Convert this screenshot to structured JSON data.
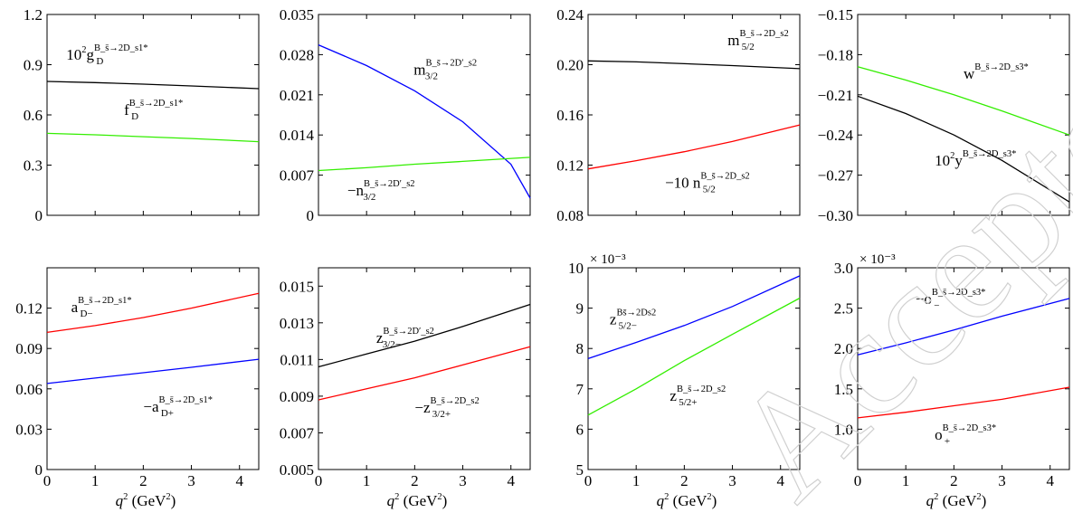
{
  "colors": {
    "black": "#000000",
    "red": "#ff0000",
    "blue": "#0000ff",
    "green": "#33ee00",
    "watermark": "#d9d9d9"
  },
  "watermark_text": "Accepted",
  "chart_data": [
    {
      "type": "line",
      "xlim": [
        0,
        4.4
      ],
      "ylim": [
        0,
        1.2
      ],
      "xticks": [],
      "yticks": [
        "0",
        "0.3",
        "0.6",
        "0.9",
        "1.2"
      ],
      "ytick_values": [
        0,
        0.3,
        0.6,
        0.9,
        1.2
      ],
      "multiplier": "",
      "xlabel": "",
      "series": [
        {
          "color": "black",
          "x": [
            0,
            1,
            2,
            3,
            4.4
          ],
          "y": [
            0.8,
            0.793,
            0.784,
            0.773,
            0.757
          ]
        },
        {
          "color": "green",
          "x": [
            0,
            1,
            2,
            3,
            4.4
          ],
          "y": [
            0.49,
            0.481,
            0.47,
            0.459,
            0.44
          ]
        }
      ],
      "annotations": [
        {
          "pre": "10",
          "pre_sup": "2",
          "base": "g",
          "sup": "B_s̄→2D_s1*",
          "sub": "D",
          "anchor_x": 0.4,
          "anchor_y": 0.93
        },
        {
          "pre": "",
          "pre_sup": "",
          "base": "f",
          "sup": "B_s̄→2D_s1*",
          "sub": "D",
          "anchor_x": 1.6,
          "anchor_y": 0.6
        }
      ]
    },
    {
      "type": "line",
      "xlim": [
        0,
        4.4
      ],
      "ylim": [
        0,
        0.035
      ],
      "xticks": [],
      "yticks": [
        "0",
        "0.007",
        "0.014",
        "0.021",
        "0.028",
        "0.035"
      ],
      "ytick_values": [
        0,
        0.007,
        0.014,
        0.021,
        0.028,
        0.035
      ],
      "multiplier": "",
      "xlabel": "",
      "series": [
        {
          "color": "blue",
          "x": [
            0,
            1,
            2,
            3,
            4,
            4.4
          ],
          "y": [
            0.0297,
            0.0261,
            0.0217,
            0.0163,
            0.0089,
            0.003
          ]
        },
        {
          "color": "green",
          "x": [
            0,
            1,
            2,
            3,
            4.4
          ],
          "y": [
            0.0078,
            0.0083,
            0.0089,
            0.0094,
            0.0101
          ]
        }
      ],
      "annotations": [
        {
          "pre": "",
          "pre_sup": "",
          "base": "m",
          "sup": "B_s̄→2D′_s2",
          "sub": "3/2",
          "anchor_x": 1.98,
          "anchor_y": 0.0245
        },
        {
          "pre": "−",
          "pre_sup": "",
          "base": "n",
          "sup": "B_s̄→2D′_s2",
          "sub": "3/2",
          "anchor_x": 0.6,
          "anchor_y": 0.0035
        }
      ]
    },
    {
      "type": "line",
      "xlim": [
        0,
        4.4
      ],
      "ylim": [
        0.08,
        0.24
      ],
      "xticks": [],
      "yticks": [
        "0.08",
        "0.12",
        "0.16",
        "0.20",
        "0.24"
      ],
      "ytick_values": [
        0.08,
        0.12,
        0.16,
        0.2,
        0.24
      ],
      "multiplier": "",
      "xlabel": "",
      "series": [
        {
          "color": "black",
          "x": [
            0,
            1,
            2,
            3,
            4.4
          ],
          "y": [
            0.203,
            0.2022,
            0.2008,
            0.1993,
            0.1968
          ]
        },
        {
          "color": "red",
          "x": [
            0,
            1,
            2,
            3,
            4.4
          ],
          "y": [
            0.117,
            0.1235,
            0.1307,
            0.1388,
            0.152
          ]
        }
      ],
      "annotations": [
        {
          "pre": "",
          "pre_sup": "",
          "base": "m",
          "sup": "B_s̄→2D_s2",
          "sub": "5/2",
          "anchor_x": 2.9,
          "anchor_y": 0.2155
        },
        {
          "pre": "−10 ",
          "pre_sup": "",
          "base": "n",
          "sup": "B_s̄→2D_s2",
          "sub": "5/2",
          "anchor_x": 1.6,
          "anchor_y": 0.102
        }
      ]
    },
    {
      "type": "line",
      "xlim": [
        0,
        4.4
      ],
      "ylim": [
        -0.3,
        -0.15
      ],
      "xticks": [],
      "yticks": [
        "−0.30",
        "−0.27",
        "−0.24",
        "−0.21",
        "−0.18",
        "−0.15"
      ],
      "ytick_values": [
        -0.3,
        -0.27,
        -0.24,
        -0.21,
        -0.18,
        -0.15
      ],
      "multiplier": "",
      "xlabel": "",
      "series": [
        {
          "color": "green",
          "x": [
            0,
            1,
            2,
            3,
            4.4
          ],
          "y": [
            -0.189,
            -0.199,
            -0.21,
            -0.222,
            -0.24
          ]
        },
        {
          "color": "black",
          "x": [
            0,
            1,
            2,
            3,
            4.4
          ],
          "y": [
            -0.211,
            -0.224,
            -0.24,
            -0.259,
            -0.29
          ]
        }
      ],
      "annotations": [
        {
          "pre": "",
          "pre_sup": "",
          "base": "w",
          "sup": "B_s̄→2D_s3*",
          "sub": "",
          "anchor_x": 2.2,
          "anchor_y": -0.198
        },
        {
          "pre": "10",
          "pre_sup": "2",
          "base": "y",
          "sup": "B_s̄→2D_s3*",
          "sub": "",
          "anchor_x": 1.6,
          "anchor_y": -0.263
        }
      ]
    },
    {
      "type": "line",
      "xlim": [
        0,
        4.4
      ],
      "ylim": [
        0,
        0.15
      ],
      "xticks": [
        "0",
        "1",
        "2",
        "3",
        "4"
      ],
      "xtick_values": [
        0,
        1,
        2,
        3,
        4
      ],
      "yticks": [
        "0",
        "0.03",
        "0.06",
        "0.09",
        "0.12"
      ],
      "ytick_values": [
        0,
        0.03,
        0.06,
        0.09,
        0.12
      ],
      "multiplier": "",
      "xlabel": "q² (GeV²)",
      "series": [
        {
          "color": "red",
          "x": [
            0,
            1,
            2,
            3,
            4.4
          ],
          "y": [
            0.102,
            0.107,
            0.113,
            0.12,
            0.131
          ]
        },
        {
          "color": "blue",
          "x": [
            0,
            1,
            2,
            3,
            4.4
          ],
          "y": [
            0.064,
            0.068,
            0.072,
            0.076,
            0.082
          ]
        }
      ],
      "annotations": [
        {
          "pre": "",
          "pre_sup": "",
          "base": "a",
          "sup": "B_s̄→2D_s1*",
          "sub": "D−",
          "anchor_x": 0.5,
          "anchor_y": 0.117
        },
        {
          "pre": "−",
          "pre_sup": "",
          "base": "a",
          "sup": "B_s̄→2D_s1*",
          "sub": "D+",
          "anchor_x": 2.0,
          "anchor_y": 0.043
        }
      ]
    },
    {
      "type": "line",
      "xlim": [
        0,
        4.4
      ],
      "ylim": [
        0.005,
        0.016
      ],
      "xticks": [
        "0",
        "1",
        "2",
        "3",
        "4"
      ],
      "xtick_values": [
        0,
        1,
        2,
        3,
        4
      ],
      "yticks": [
        "0.005",
        "0.007",
        "0.009",
        "0.011",
        "0.013",
        "0.015"
      ],
      "ytick_values": [
        0.005,
        0.007,
        0.009,
        0.011,
        0.013,
        0.015
      ],
      "multiplier": "",
      "xlabel": "q² (GeV²)",
      "series": [
        {
          "color": "black",
          "x": [
            0,
            1,
            2,
            3,
            4.4
          ],
          "y": [
            0.0106,
            0.0113,
            0.012,
            0.0128,
            0.014
          ]
        },
        {
          "color": "red",
          "x": [
            0,
            1,
            2,
            3,
            4.4
          ],
          "y": [
            0.0088,
            0.0094,
            0.01,
            0.0107,
            0.0117
          ]
        }
      ],
      "annotations": [
        {
          "pre": "",
          "pre_sup": "",
          "base": "z",
          "sup": "B_s̄→2D′_s2",
          "sub": "3/2−",
          "anchor_x": 1.2,
          "anchor_y": 0.0119
        },
        {
          "pre": "−",
          "pre_sup": "",
          "base": "z",
          "sup": "B_s̄→2D_s2",
          "sub": "3/2+",
          "anchor_x": 2.0,
          "anchor_y": 0.0081
        }
      ]
    },
    {
      "type": "line",
      "xlim": [
        0,
        4.4
      ],
      "ylim": [
        5,
        10
      ],
      "xticks": [
        "0",
        "1",
        "2",
        "3",
        "4"
      ],
      "xtick_values": [
        0,
        1,
        2,
        3,
        4
      ],
      "yticks": [
        "5",
        "6",
        "7",
        "8",
        "9",
        "10"
      ],
      "ytick_values": [
        5,
        6,
        7,
        8,
        9,
        10
      ],
      "multiplier": "× 10⁻³",
      "xlabel": "q² (GeV²)",
      "series": [
        {
          "color": "blue",
          "x": [
            0,
            1,
            2,
            3,
            4.4
          ],
          "y": [
            7.75,
            8.15,
            8.57,
            9.04,
            9.8
          ]
        },
        {
          "color": "green",
          "x": [
            0,
            1,
            2,
            3,
            4.4
          ],
          "y": [
            6.35,
            7.0,
            7.7,
            8.35,
            9.25
          ]
        }
      ],
      "annotations": [
        {
          "pre": "",
          "pre_sup": "",
          "base": "z",
          "sup": "Bs̄→2Ds2",
          "sub": "5/2−",
          "anchor_x": 0.45,
          "anchor_y": 8.6
        },
        {
          "pre": "",
          "pre_sup": "",
          "base": "z",
          "sup": "B_s̄→2D_s2",
          "sub": "5/2+",
          "anchor_x": 1.7,
          "anchor_y": 6.7
        }
      ]
    },
    {
      "type": "line",
      "xlim": [
        0,
        4.4
      ],
      "ylim": [
        0.5,
        3.0
      ],
      "xticks": [
        "0",
        "1",
        "2",
        "3",
        "4"
      ],
      "xtick_values": [
        0,
        1,
        2,
        3,
        4
      ],
      "yticks": [
        "1.0",
        "1.5",
        "2.0",
        "2.5",
        "3.0"
      ],
      "ytick_values": [
        1,
        1.5,
        2,
        2.5,
        3
      ],
      "multiplier": "× 10⁻³",
      "xlabel": "q² (GeV²)",
      "series": [
        {
          "color": "blue",
          "x": [
            0,
            1,
            2,
            3,
            4.4
          ],
          "y": [
            1.92,
            2.07,
            2.23,
            2.4,
            2.62
          ]
        },
        {
          "color": "red",
          "x": [
            0,
            1,
            2,
            3,
            4.4
          ],
          "y": [
            1.14,
            1.21,
            1.29,
            1.37,
            1.52
          ]
        }
      ],
      "annotations": [
        {
          "pre": "−",
          "pre_sup": "",
          "base": "o",
          "sup": "B_s̄→2D_s3*",
          "sub": "−",
          "anchor_x": 1.2,
          "anchor_y": 2.55
        },
        {
          "pre": "",
          "pre_sup": "",
          "base": "o",
          "sup": "B_s̄→2D_s3*",
          "sub": "+",
          "anchor_x": 1.6,
          "anchor_y": 0.87
        }
      ]
    }
  ]
}
